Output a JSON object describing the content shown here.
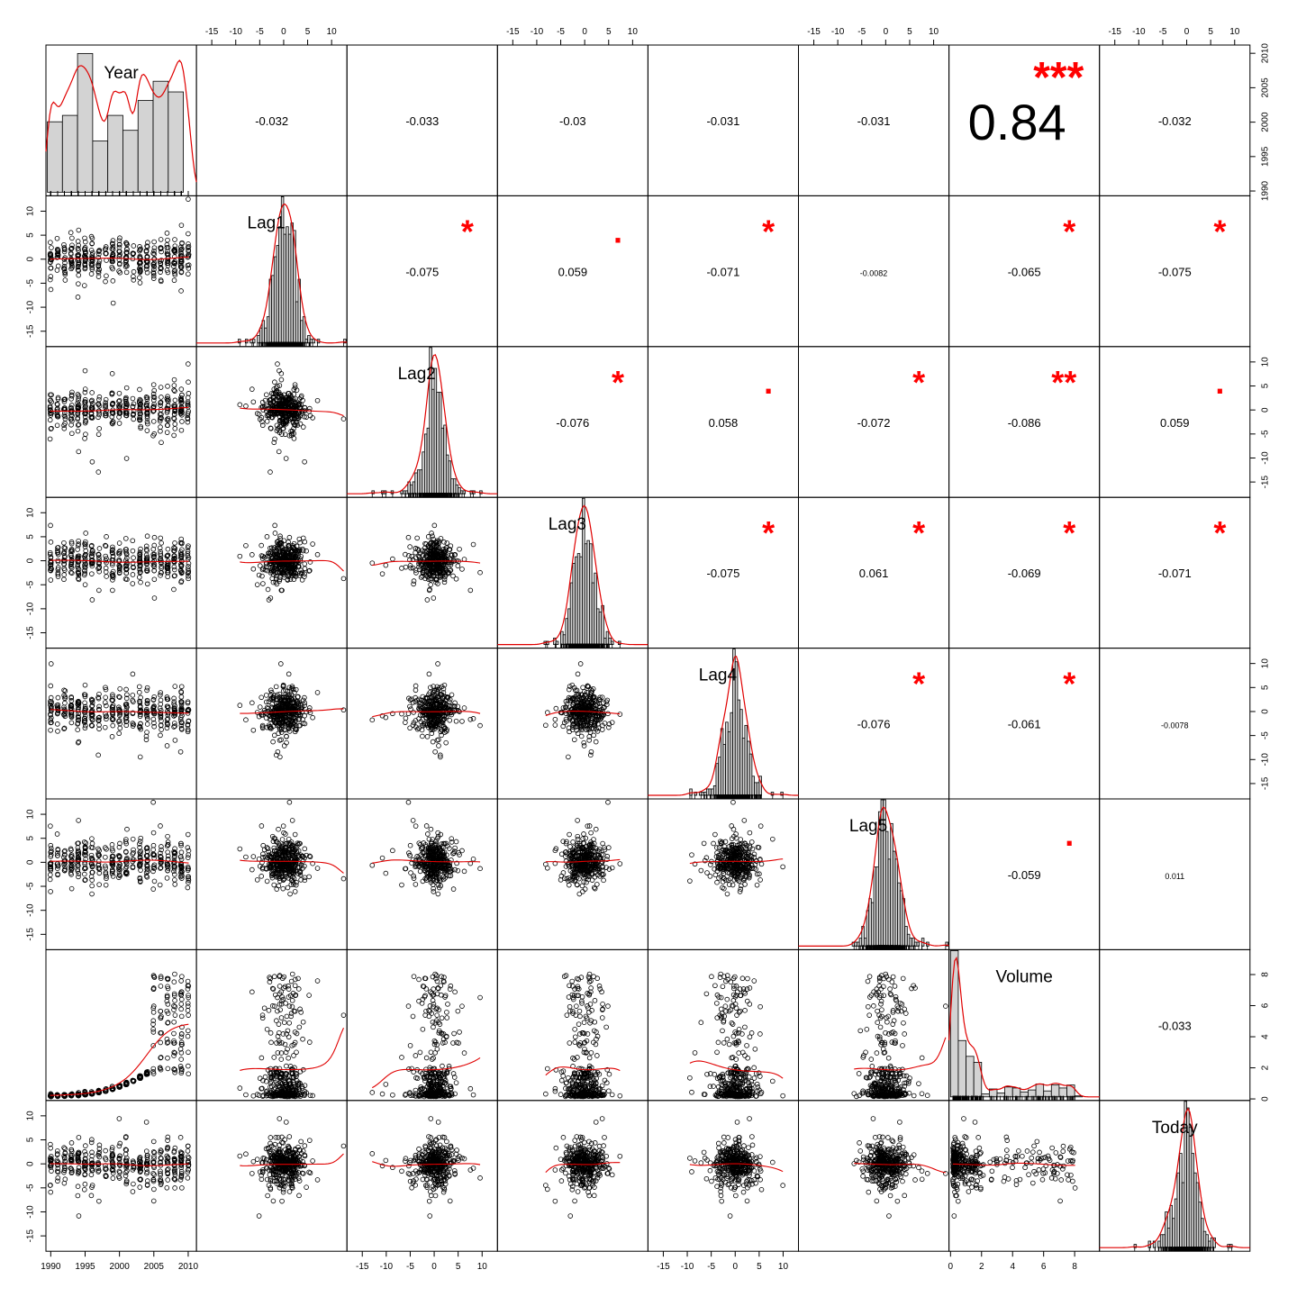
{
  "chart_data": {
    "type": "scatter",
    "subtype": "correlation-scatterplot-matrix",
    "variables": [
      "Year",
      "Lag1",
      "Lag2",
      "Lag3",
      "Lag4",
      "Lag5",
      "Volume",
      "Today"
    ],
    "axes": {
      "Year": {
        "ticks": [
          1990,
          1995,
          2000,
          2005,
          2010
        ],
        "range": [
          1989.3,
          2011.2
        ]
      },
      "Lag": {
        "ticks": [
          -15,
          -10,
          -5,
          0,
          5,
          10
        ],
        "range": [
          -18.2,
          13.2
        ]
      },
      "Volume": {
        "ticks": [
          0,
          2,
          4,
          6,
          8
        ],
        "range": [
          -0.1,
          9.6
        ]
      }
    },
    "correlations": [
      {
        "row": "Year",
        "col": "Lag1",
        "r": "-0.032",
        "stars": ""
      },
      {
        "row": "Year",
        "col": "Lag2",
        "r": "-0.033",
        "stars": ""
      },
      {
        "row": "Year",
        "col": "Lag3",
        "r": "-0.03",
        "stars": ""
      },
      {
        "row": "Year",
        "col": "Lag4",
        "r": "-0.031",
        "stars": ""
      },
      {
        "row": "Year",
        "col": "Lag5",
        "r": "-0.031",
        "stars": ""
      },
      {
        "row": "Year",
        "col": "Volume",
        "r": "0.84",
        "stars": "***"
      },
      {
        "row": "Year",
        "col": "Today",
        "r": "-0.032",
        "stars": ""
      },
      {
        "row": "Lag1",
        "col": "Lag2",
        "r": "-0.075",
        "stars": "*"
      },
      {
        "row": "Lag1",
        "col": "Lag3",
        "r": "0.059",
        "stars": "."
      },
      {
        "row": "Lag1",
        "col": "Lag4",
        "r": "-0.071",
        "stars": "*"
      },
      {
        "row": "Lag1",
        "col": "Lag5",
        "r": "-0.0082",
        "stars": ""
      },
      {
        "row": "Lag1",
        "col": "Volume",
        "r": "-0.065",
        "stars": "*"
      },
      {
        "row": "Lag1",
        "col": "Today",
        "r": "-0.075",
        "stars": "*"
      },
      {
        "row": "Lag2",
        "col": "Lag3",
        "r": "-0.076",
        "stars": "*"
      },
      {
        "row": "Lag2",
        "col": "Lag4",
        "r": "0.058",
        "stars": "."
      },
      {
        "row": "Lag2",
        "col": "Lag5",
        "r": "-0.072",
        "stars": "*"
      },
      {
        "row": "Lag2",
        "col": "Volume",
        "r": "-0.086",
        "stars": "**"
      },
      {
        "row": "Lag2",
        "col": "Today",
        "r": "0.059",
        "stars": "."
      },
      {
        "row": "Lag3",
        "col": "Lag4",
        "r": "-0.075",
        "stars": "*"
      },
      {
        "row": "Lag3",
        "col": "Lag5",
        "r": "0.061",
        "stars": "*"
      },
      {
        "row": "Lag3",
        "col": "Volume",
        "r": "-0.069",
        "stars": "*"
      },
      {
        "row": "Lag3",
        "col": "Today",
        "r": "-0.071",
        "stars": "*"
      },
      {
        "row": "Lag4",
        "col": "Lag5",
        "r": "-0.076",
        "stars": "*"
      },
      {
        "row": "Lag4",
        "col": "Volume",
        "r": "-0.061",
        "stars": "*"
      },
      {
        "row": "Lag4",
        "col": "Today",
        "r": "-0.0078",
        "stars": ""
      },
      {
        "row": "Lag5",
        "col": "Volume",
        "r": "-0.059",
        "stars": "."
      },
      {
        "row": "Lag5",
        "col": "Today",
        "r": "0.011",
        "stars": ""
      },
      {
        "row": "Volume",
        "col": "Today",
        "r": "-0.033",
        "stars": ""
      }
    ],
    "colors": {
      "points": "#000000",
      "smooth": "#e00000",
      "stars": "#ff0000",
      "hist_fill": "#d3d3d3"
    },
    "grid": false,
    "legend": "none"
  }
}
